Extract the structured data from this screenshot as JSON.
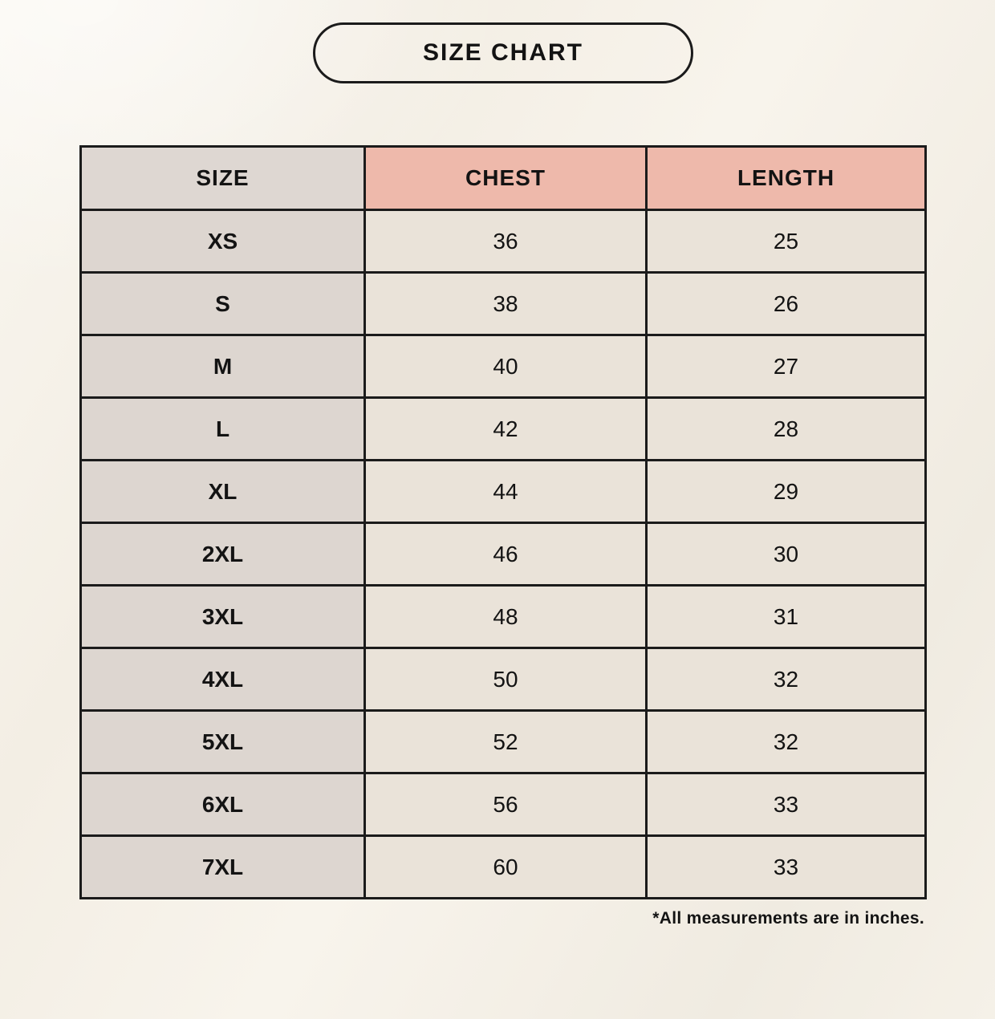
{
  "title": "SIZE CHART",
  "colors": {
    "page_bg": "#f5f0e8",
    "border": "#1b1b1b",
    "text": "#131313",
    "header_size_bg": "#ded7d2",
    "header_measure_bg": "#eeb9ab",
    "size_col_bg": "#ddd6d0",
    "value_cell_bg": "#eae3d9"
  },
  "table": {
    "columns": [
      "SIZE",
      "CHEST",
      "LENGTH"
    ],
    "rows": [
      {
        "size": "XS",
        "chest": "36",
        "length": "25"
      },
      {
        "size": "S",
        "chest": "38",
        "length": "26"
      },
      {
        "size": "M",
        "chest": "40",
        "length": "27"
      },
      {
        "size": "L",
        "chest": "42",
        "length": "28"
      },
      {
        "size": "XL",
        "chest": "44",
        "length": "29"
      },
      {
        "size": "2XL",
        "chest": "46",
        "length": "30"
      },
      {
        "size": "3XL",
        "chest": "48",
        "length": "31"
      },
      {
        "size": "4XL",
        "chest": "50",
        "length": "32"
      },
      {
        "size": "5XL",
        "chest": "52",
        "length": "32"
      },
      {
        "size": "6XL",
        "chest": "56",
        "length": "33"
      },
      {
        "size": "7XL",
        "chest": "60",
        "length": "33"
      }
    ]
  },
  "footnote": "*All measurements are in inches."
}
